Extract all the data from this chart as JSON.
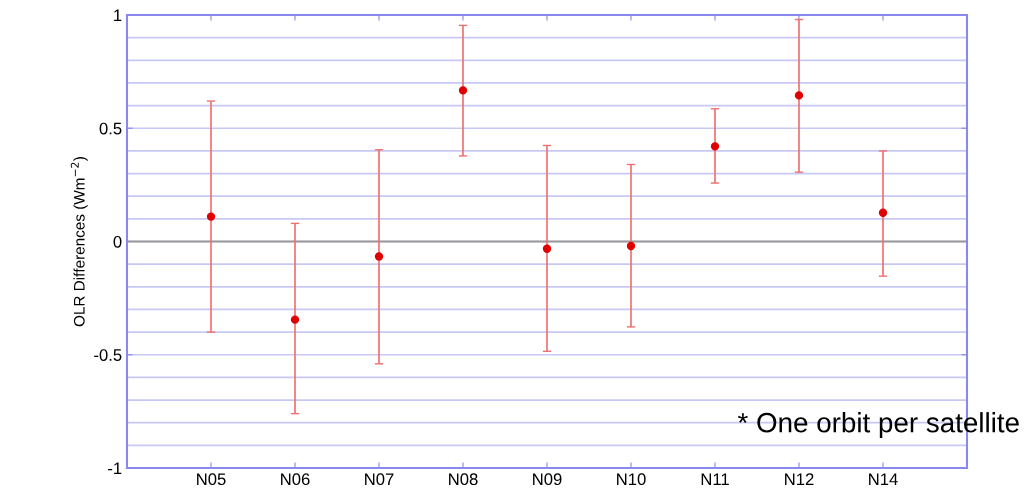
{
  "chart_data": {
    "type": "scatter",
    "ylabel": "OLR Differences (Wm$^{−2}$)",
    "categories": [
      "N05",
      "N06",
      "N07",
      "N08",
      "N09",
      "N10",
      "N11",
      "N12",
      "N14"
    ],
    "series": [
      {
        "color": "#e00000",
        "values": [
          0.11,
          -0.345,
          -0.066,
          0.667,
          -0.032,
          -0.02,
          0.42,
          0.645,
          0.127
        ],
        "errors": [
          [
            -0.4,
            0.62
          ],
          [
            -0.76,
            0.08
          ],
          [
            -0.54,
            0.405
          ],
          [
            0.378,
            0.954
          ],
          [
            -0.485,
            0.424
          ],
          [
            -0.377,
            0.34
          ],
          [
            0.258,
            0.586
          ],
          [
            0.306,
            0.98
          ],
          [
            -0.153,
            0.4
          ]
        ]
      }
    ],
    "ylim": [
      -1,
      1
    ],
    "yticks": [
      -1,
      {
        "value": -0.9,
        "label": null
      },
      {
        "value": -0.8,
        "label": null
      },
      {
        "value": -0.7,
        "label": null
      },
      {
        "value": -0.6,
        "label": null
      },
      -0.5,
      {
        "value": -0.4,
        "label": null
      },
      {
        "value": -0.3,
        "label": null
      },
      {
        "value": -0.2,
        "label": null
      },
      {
        "value": -0.1,
        "label": null
      },
      0,
      {
        "value": 0.1,
        "label": null
      },
      {
        "value": 0.2,
        "label": null
      },
      {
        "value": 0.3,
        "label": null
      },
      {
        "value": 0.4,
        "label": null
      },
      0.5,
      {
        "value": 0.6,
        "label": null
      },
      {
        "value": 0.7,
        "label": null
      },
      {
        "value": 0.8,
        "label": null
      },
      {
        "value": 0.9,
        "label": null
      },
      1
    ],
    "grid": "y",
    "marker": "circle",
    "ref_lines": [
      {
        "axis": "y",
        "value": 0,
        "color": "#999999"
      }
    ],
    "annotations": [
      "* One orbit per satellite"
    ]
  }
}
